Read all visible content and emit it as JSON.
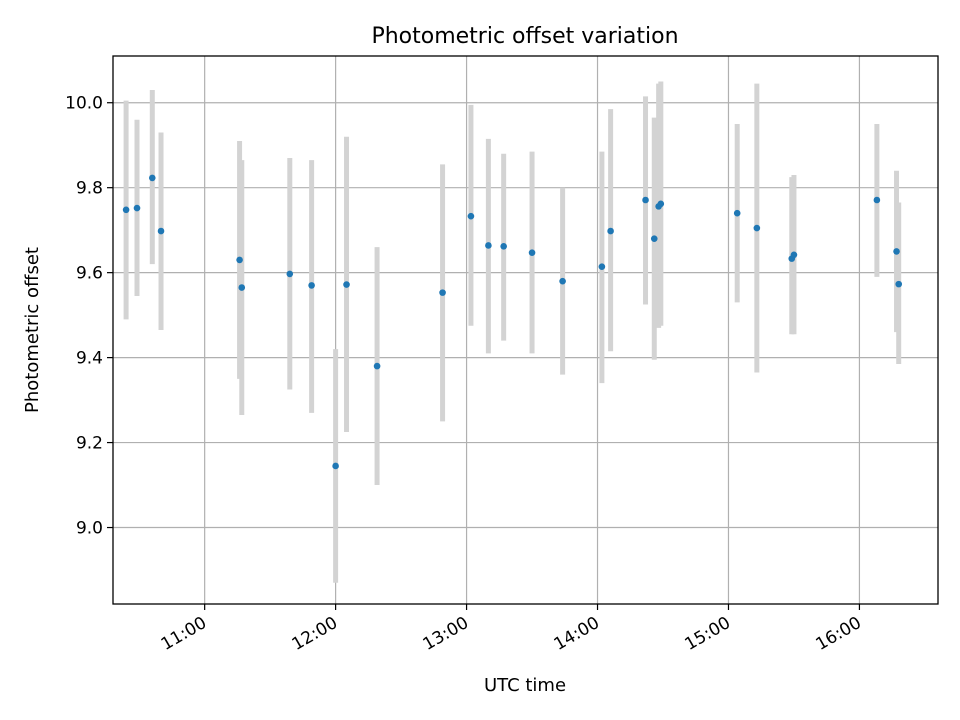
{
  "chart_data": {
    "type": "scatter",
    "title": "Photometric offset variation",
    "xlabel": "UTC time",
    "ylabel": "Photometric offset",
    "xlim": [
      "10:18",
      "16:36"
    ],
    "ylim": [
      8.82,
      10.11
    ],
    "grid": true,
    "colors": {
      "point": "#1f77b4",
      "errorbar": "#d3d3d3"
    },
    "x_ticks": [
      "11:00",
      "12:00",
      "13:00",
      "14:00",
      "15:00",
      "16:00"
    ],
    "y_ticks": [
      9.0,
      9.2,
      9.4,
      9.6,
      9.8,
      10.0
    ],
    "y_tick_labels": [
      "9.0",
      "9.2",
      "9.4",
      "9.6",
      "9.8",
      "10.0"
    ],
    "points": [
      {
        "x": "10:24",
        "y": 9.748,
        "low": 9.49,
        "high": 10.005
      },
      {
        "x": "10:29",
        "y": 9.752,
        "low": 9.545,
        "high": 9.96
      },
      {
        "x": "10:36",
        "y": 9.823,
        "low": 9.62,
        "high": 10.03
      },
      {
        "x": "10:40",
        "y": 9.698,
        "low": 9.465,
        "high": 9.93
      },
      {
        "x": "11:16",
        "y": 9.63,
        "low": 9.35,
        "high": 9.91
      },
      {
        "x": "11:17",
        "y": 9.565,
        "low": 9.265,
        "high": 9.865
      },
      {
        "x": "11:39",
        "y": 9.597,
        "low": 9.325,
        "high": 9.87
      },
      {
        "x": "11:49",
        "y": 9.57,
        "low": 9.27,
        "high": 9.865
      },
      {
        "x": "12:00",
        "y": 9.145,
        "low": 8.87,
        "high": 9.42
      },
      {
        "x": "12:05",
        "y": 9.572,
        "low": 9.225,
        "high": 9.92
      },
      {
        "x": "12:19",
        "y": 9.38,
        "low": 9.1,
        "high": 9.66
      },
      {
        "x": "12:49",
        "y": 9.553,
        "low": 9.25,
        "high": 9.855
      },
      {
        "x": "13:02",
        "y": 9.733,
        "low": 9.475,
        "high": 9.995
      },
      {
        "x": "13:10",
        "y": 9.664,
        "low": 9.41,
        "high": 9.915
      },
      {
        "x": "13:17",
        "y": 9.662,
        "low": 9.44,
        "high": 9.88
      },
      {
        "x": "13:30",
        "y": 9.647,
        "low": 9.41,
        "high": 9.885
      },
      {
        "x": "13:44",
        "y": 9.58,
        "low": 9.36,
        "high": 9.8
      },
      {
        "x": "14:02",
        "y": 9.614,
        "low": 9.34,
        "high": 9.885
      },
      {
        "x": "14:06",
        "y": 9.698,
        "low": 9.415,
        "high": 9.985
      },
      {
        "x": "14:22",
        "y": 9.771,
        "low": 9.525,
        "high": 10.015
      },
      {
        "x": "14:26",
        "y": 9.68,
        "low": 9.395,
        "high": 9.965
      },
      {
        "x": "14:28",
        "y": 9.756,
        "low": 9.47,
        "high": 10.045
      },
      {
        "x": "14:29",
        "y": 9.762,
        "low": 9.475,
        "high": 10.05
      },
      {
        "x": "15:04",
        "y": 9.74,
        "low": 9.53,
        "high": 9.95
      },
      {
        "x": "15:13",
        "y": 9.705,
        "low": 9.365,
        "high": 10.045
      },
      {
        "x": "15:29",
        "y": 9.633,
        "low": 9.455,
        "high": 9.825
      },
      {
        "x": "15:30",
        "y": 9.642,
        "low": 9.455,
        "high": 9.83
      },
      {
        "x": "16:08",
        "y": 9.771,
        "low": 9.59,
        "high": 9.95
      },
      {
        "x": "16:17",
        "y": 9.65,
        "low": 9.46,
        "high": 9.84
      },
      {
        "x": "16:18",
        "y": 9.573,
        "low": 9.385,
        "high": 9.765
      }
    ]
  }
}
